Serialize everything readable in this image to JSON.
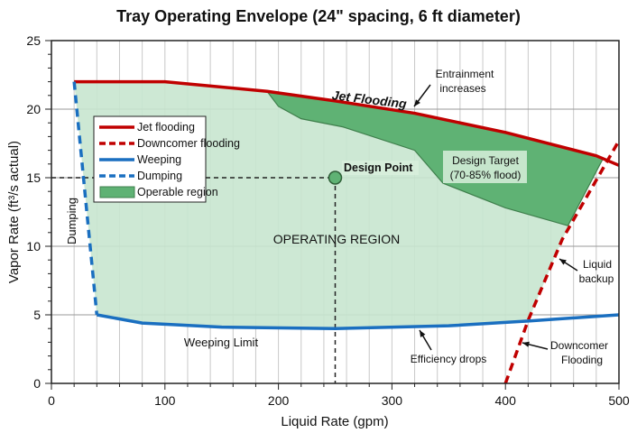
{
  "chart_data": {
    "type": "line",
    "title": "Tray Operating Envelope (24\" spacing, 6 ft diameter)",
    "xlabel": "Liquid Rate (gpm)",
    "ylabel": "Vapor Rate (ft³/s actual)",
    "xlim": [
      0,
      500
    ],
    "ylim": [
      0,
      25
    ],
    "xticks": [
      0,
      100,
      200,
      300,
      400,
      500
    ],
    "yticks": [
      0,
      5,
      10,
      15,
      20,
      25
    ],
    "grid": true,
    "legend_placement": "upper-left",
    "series": [
      {
        "name": "Jet flooding",
        "style": "solid",
        "color": "#c00000",
        "points": [
          [
            20,
            22
          ],
          [
            100,
            22
          ],
          [
            190,
            21.3
          ],
          [
            250,
            20.6
          ],
          [
            320,
            19.7
          ],
          [
            400,
            18.3
          ],
          [
            480,
            16.6
          ],
          [
            500,
            15.9
          ]
        ]
      },
      {
        "name": "Downcomer flooding",
        "style": "dashed",
        "color": "#c00000",
        "points": [
          [
            400,
            0
          ],
          [
            420,
            4.6
          ],
          [
            450,
            10.5
          ],
          [
            500,
            17.7
          ]
        ]
      },
      {
        "name": "Weeping",
        "style": "solid",
        "color": "#1a6fc0",
        "points": [
          [
            40,
            5
          ],
          [
            80,
            4.4
          ],
          [
            150,
            4.1
          ],
          [
            250,
            4.0
          ],
          [
            350,
            4.2
          ],
          [
            420,
            4.55
          ],
          [
            500,
            5.0
          ]
        ]
      },
      {
        "name": "Dumping",
        "style": "dashed",
        "color": "#1a6fc0",
        "points": [
          [
            20,
            22
          ],
          [
            40,
            5
          ]
        ]
      }
    ],
    "operable_region": {
      "name": "Operable region",
      "color": "#c8e6cf",
      "points": [
        [
          20,
          22
        ],
        [
          100,
          22
        ],
        [
          190,
          21.3
        ],
        [
          250,
          20.6
        ],
        [
          320,
          19.7
        ],
        [
          400,
          18.3
        ],
        [
          486,
          16.4
        ],
        [
          450,
          10.5
        ],
        [
          420,
          4.55
        ],
        [
          350,
          4.2
        ],
        [
          250,
          4.0
        ],
        [
          150,
          4.1
        ],
        [
          80,
          4.4
        ],
        [
          40,
          5
        ]
      ]
    },
    "design_target_region": {
      "color": "#5fb274",
      "points": [
        [
          190,
          21.3
        ],
        [
          250,
          20.6
        ],
        [
          320,
          19.7
        ],
        [
          400,
          18.3
        ],
        [
          486,
          16.4
        ],
        [
          455,
          11.5
        ],
        [
          400,
          12.8
        ],
        [
          345,
          14.6
        ],
        [
          320,
          17.0
        ],
        [
          257,
          18.7
        ],
        [
          220,
          19.3
        ],
        [
          200,
          20.2
        ]
      ]
    },
    "design_point": {
      "label": "Design Point",
      "x": 250,
      "y": 15
    },
    "annotations": {
      "jet_flooding": "Jet Flooding",
      "entrainment": [
        "Entrainment",
        "increases"
      ],
      "design_target": [
        "Design Target",
        "(70-85% flood)"
      ],
      "operating_region": "OPERATING REGION",
      "dumping": "Dumping",
      "weeping_limit": "Weeping Limit",
      "efficiency": "Efficiency drops",
      "liquid_backup": [
        "Liquid",
        "backup"
      ],
      "downcomer": [
        "Downcomer",
        "Flooding"
      ]
    },
    "legend": [
      "Jet flooding",
      "Downcomer flooding",
      "Weeping",
      "Dumping",
      "Operable region"
    ]
  }
}
